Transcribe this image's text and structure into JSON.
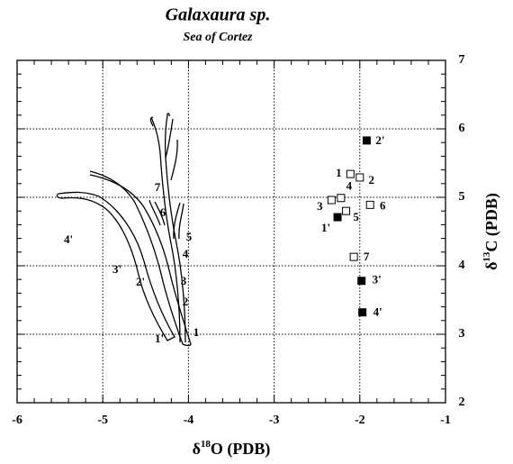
{
  "chart_data": {
    "type": "scatter",
    "title": "Galaxaura sp.",
    "subtitle": "Sea of Cortez",
    "xlabel_parts": [
      "δ",
      "18",
      "O (PDB)"
    ],
    "ylabel_parts": [
      "δ",
      "13",
      "C (PDB)"
    ],
    "xlim": [
      -6,
      -1
    ],
    "ylim": [
      2,
      7
    ],
    "xticks": [
      -6,
      -5,
      -4,
      -3,
      -2,
      -1
    ],
    "yticks": [
      2,
      3,
      4,
      5,
      6,
      7
    ],
    "xminorticks": [
      -5.8,
      -5.6,
      -5.4,
      -5.2,
      -4.8,
      -4.6,
      -4.4,
      -4.2,
      -3.8,
      -3.6,
      -3.4,
      -3.2,
      -2.8,
      -2.6,
      -2.4,
      -2.2,
      -1.8,
      -1.6,
      -1.4,
      -1.2
    ],
    "yminorticks": [
      2.2,
      2.4,
      2.6,
      2.8,
      3.2,
      3.4,
      3.6,
      3.8,
      4.2,
      4.4,
      4.6,
      4.8,
      5.2,
      5.4,
      5.6,
      5.8,
      6.2,
      6.4,
      6.6,
      6.8
    ],
    "grid": true,
    "series": [
      {
        "marker": "open",
        "color": "#000000",
        "labels": [
          "1",
          "2",
          "3",
          "4",
          "5",
          "6",
          "7"
        ],
        "x": [
          -2.11,
          -2.0,
          -2.33,
          -2.22,
          -2.16,
          -1.88,
          -2.07
        ],
        "values": [
          5.34,
          5.29,
          4.96,
          4.99,
          4.8,
          4.89,
          4.13
        ]
      },
      {
        "marker": "filled",
        "color": "#000000",
        "labels": [
          "2'",
          "1'",
          "3'",
          "4'"
        ],
        "x": [
          -1.92,
          -2.26,
          -1.98,
          -1.97
        ],
        "values": [
          5.83,
          4.71,
          3.78,
          3.32
        ]
      }
    ],
    "drawing_labels": [
      "1'",
      "1",
      "2",
      "2'",
      "3",
      "3'",
      "4",
      "4'",
      "5",
      "6",
      "7"
    ]
  }
}
